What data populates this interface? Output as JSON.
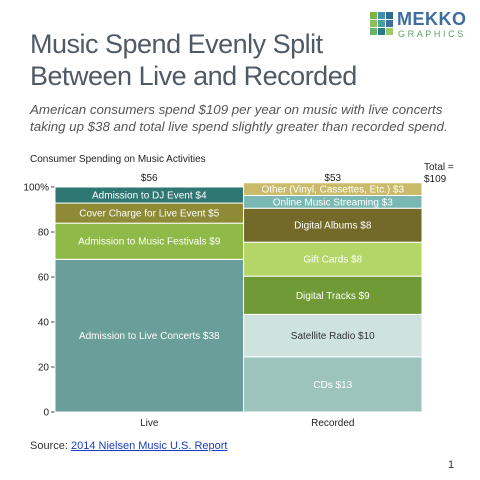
{
  "logo": {
    "name": "MEKKO",
    "sub": "GRAPHICS",
    "colors": [
      "#7cb342",
      "#3f8fb0",
      "#2e6d8e",
      "#8fbf5a",
      "#4aa0a0",
      "#3d6e9e",
      "#6cb36c",
      "#2b7a8a",
      "#9ccc65"
    ]
  },
  "title": "Music Spend Evenly Split Between Live and Recorded",
  "subtitle": "American consumers spend $109 per year on music with live concerts taking up $38 and total live spend slightly greater than recorded spend.",
  "chart_title": "Consumer Spending on Music Activities",
  "total_label": "Total = $109",
  "source": {
    "prefix": "Source: ",
    "link_text": "2014 Nielsen Music U.S. Report"
  },
  "page_number": "1",
  "chart_data": {
    "type": "marimekko",
    "title": "Consumer Spending on Music Activities",
    "y_ticks": [
      "0",
      "20",
      "40",
      "60",
      "80",
      "100%"
    ],
    "ylim": [
      0,
      100
    ],
    "total": "Total = $109",
    "columns": [
      {
        "name": "Live",
        "total": 56,
        "total_label": "$56",
        "segments": [
          {
            "label": "Admission to Live Concerts $38",
            "value": 38,
            "color": "#6a9e9a",
            "text_color": "#ffffff"
          },
          {
            "label": "Admission to Music Festivals $9",
            "value": 9,
            "color": "#8fba47",
            "text_color": "#ffffff"
          },
          {
            "label": "Cover Charge for Live Event $5",
            "value": 5,
            "color": "#8f8a36",
            "text_color": "#ffffff"
          },
          {
            "label": "Admission to DJ Event $4",
            "value": 4,
            "color": "#2e7773",
            "text_color": "#ffffff"
          }
        ]
      },
      {
        "name": "Recorded",
        "total": 53,
        "total_label": "$53",
        "segments": [
          {
            "label": "CDs $13",
            "value": 13,
            "color": "#9cc4bd",
            "text_color": "#ffffff"
          },
          {
            "label": "Satellite Radio $10",
            "value": 10,
            "color": "#cfe3de",
            "text_color": "#333333"
          },
          {
            "label": "Digital Tracks $9",
            "value": 9,
            "color": "#6f9a35",
            "text_color": "#ffffff"
          },
          {
            "label": "Gift Cards $8",
            "value": 8,
            "color": "#b3d667",
            "text_color": "#ffffff"
          },
          {
            "label": "Digital Albums $8",
            "value": 8,
            "color": "#736a2a",
            "text_color": "#ffffff"
          },
          {
            "label": "Online Music Streaming $3",
            "value": 3,
            "color": "#79b8b3",
            "text_color": "#ffffff"
          },
          {
            "label": "Other (Vinyl, Cassettes, Etc.) $3",
            "value": 3,
            "color": "#c9bb6a",
            "text_color": "#ffffff"
          }
        ]
      }
    ]
  }
}
